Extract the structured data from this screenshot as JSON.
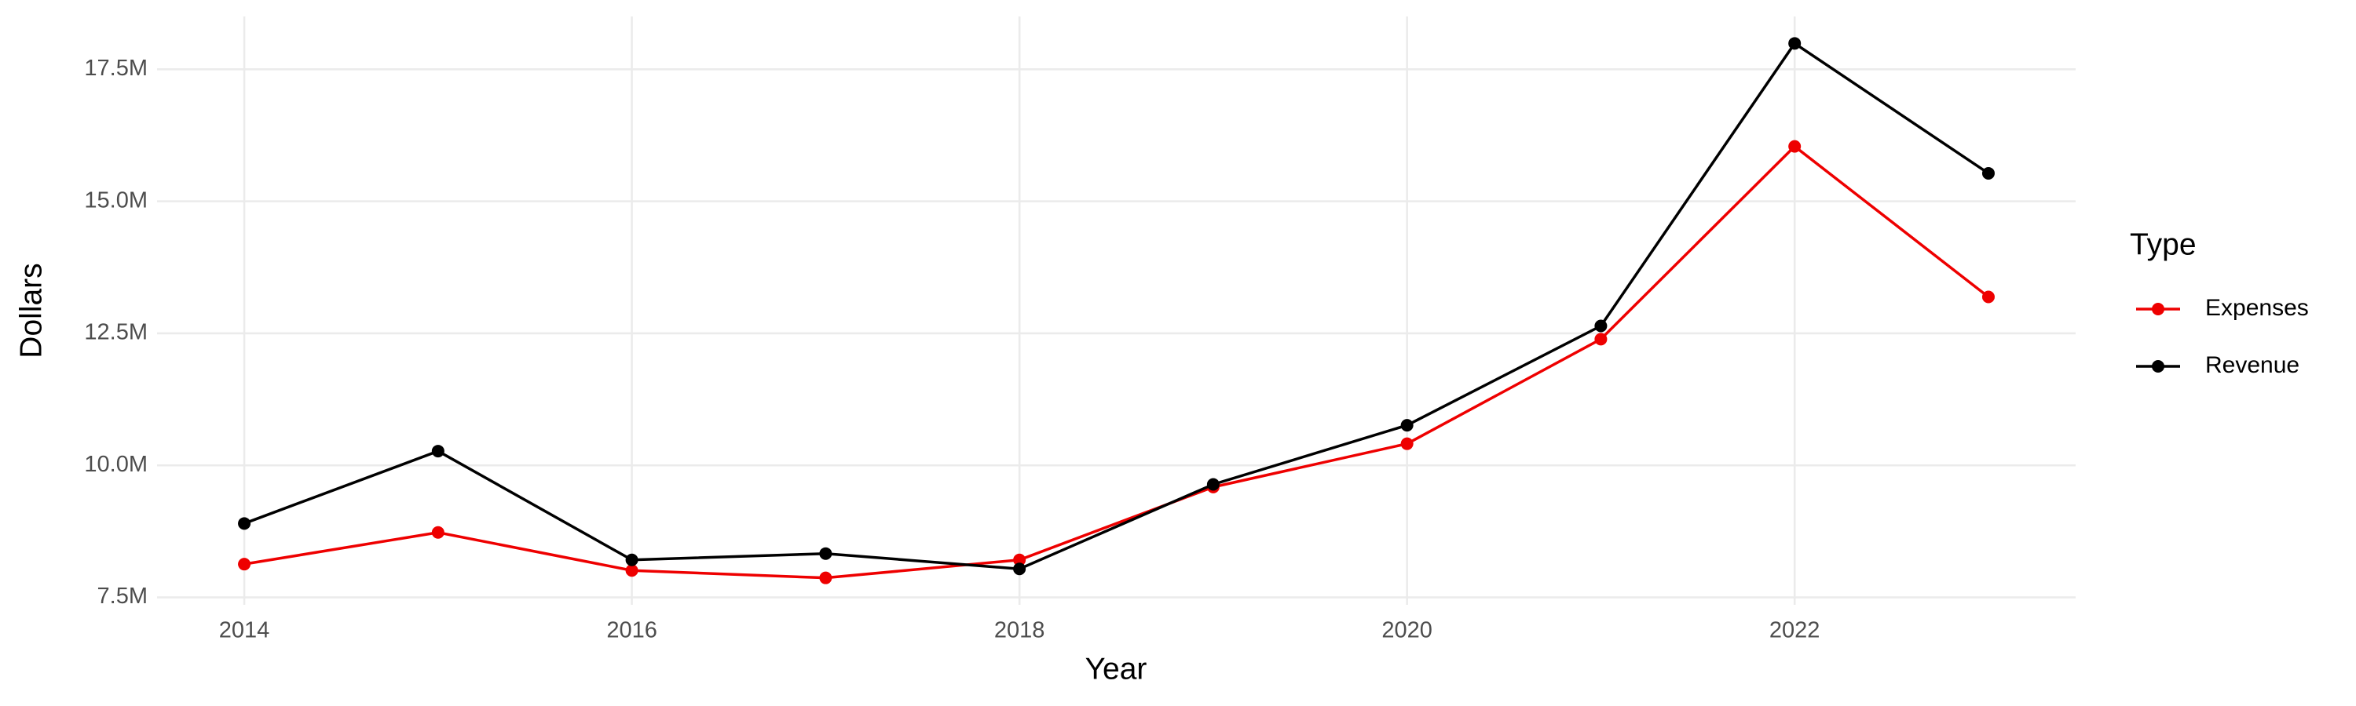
{
  "chart_data": {
    "type": "line",
    "x_label": "Year",
    "y_label": "Dollars",
    "legend_title": "Type",
    "x": [
      2014,
      2015,
      2016,
      2017,
      2018,
      2019,
      2020,
      2021,
      2022,
      2023
    ],
    "series": [
      {
        "name": "Expenses",
        "color": "#ee0000",
        "values": [
          8130000,
          8730000,
          8010000,
          7870000,
          8210000,
          9590000,
          10410000,
          12390000,
          16040000,
          13190000
        ]
      },
      {
        "name": "Revenue",
        "color": "#000000",
        "values": [
          8900000,
          10270000,
          8210000,
          8330000,
          8040000,
          9640000,
          10760000,
          12640000,
          17990000,
          15530000
        ]
      }
    ],
    "xlim": [
      2013.55,
      2023.45
    ],
    "xticks": [
      2014,
      2016,
      2018,
      2020,
      2022
    ],
    "ylim": [
      7360000,
      18500000
    ],
    "yticks": [
      {
        "value": 7500000,
        "label": "7.5M"
      },
      {
        "value": 10000000,
        "label": "10.0M"
      },
      {
        "value": 12500000,
        "label": "12.5M"
      },
      {
        "value": 15000000,
        "label": "15.0M"
      },
      {
        "value": 17500000,
        "label": "17.5M"
      }
    ],
    "grid": true,
    "legend": "right"
  }
}
